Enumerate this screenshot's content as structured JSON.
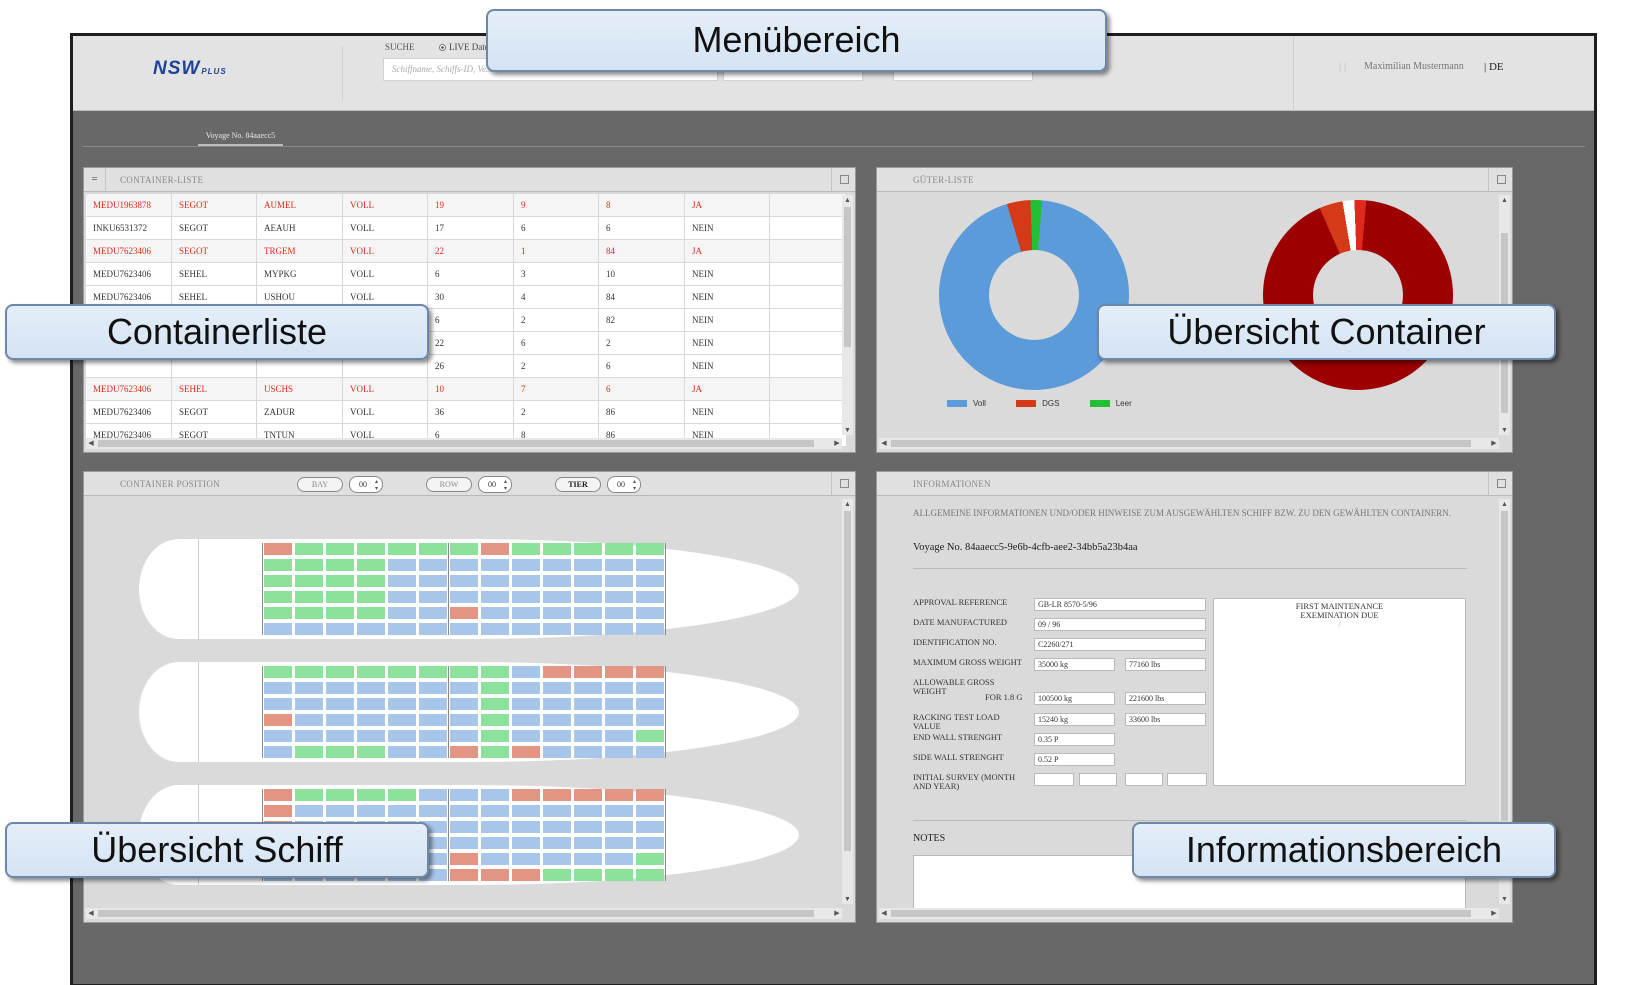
{
  "header": {
    "logo": "NSW",
    "logo_suffix": "PLUS",
    "search_label": "SUCHE",
    "live_label": "LIVE Daten",
    "search_placeholder": "Schiffname, Schiffs-ID, Ve...",
    "pipes": "| |",
    "user_name": "Maximilian Mustermann",
    "language": "| DE"
  },
  "tabs": {
    "voyage": "Voyage No. 84aaecc5"
  },
  "container_list": {
    "title": "CONTAINER-LISTE",
    "toggle": "=",
    "rows": [
      {
        "red": true,
        "cells": [
          "MEDU1963878",
          "SEGOT",
          "AUMEL",
          "VOLL",
          "19",
          "9",
          "8",
          "JA",
          ""
        ]
      },
      {
        "red": false,
        "cells": [
          "INKU6531372",
          "SEGOT",
          "AEAUH",
          "VOLL",
          "17",
          "6",
          "6",
          "NEIN",
          ""
        ]
      },
      {
        "red": true,
        "cells": [
          "MEDU7623406",
          "SEGOT",
          "TRGEM",
          "VOLL",
          "22",
          "1",
          "84",
          "JA",
          ""
        ]
      },
      {
        "red": false,
        "cells": [
          "MEDU7623406",
          "SEHEL",
          "MYPKG",
          "VOLL",
          "6",
          "3",
          "10",
          "NEIN",
          ""
        ]
      },
      {
        "red": false,
        "cells": [
          "MEDU7623406",
          "SEHEL",
          "USHOU",
          "VOLL",
          "30",
          "4",
          "84",
          "NEIN",
          ""
        ]
      },
      {
        "red": false,
        "cells": [
          "",
          "",
          "",
          "",
          "6",
          "2",
          "82",
          "NEIN",
          ""
        ]
      },
      {
        "red": false,
        "cells": [
          "",
          "",
          "",
          "",
          "22",
          "6",
          "2",
          "NEIN",
          ""
        ]
      },
      {
        "red": false,
        "cells": [
          "",
          "",
          "",
          "",
          "26",
          "2",
          "6",
          "NEIN",
          ""
        ]
      },
      {
        "red": true,
        "cells": [
          "MEDU7623406",
          "SEHEL",
          "USCHS",
          "VOLL",
          "10",
          "7",
          "6",
          "JA",
          ""
        ]
      },
      {
        "red": false,
        "cells": [
          "MEDU7623406",
          "SEGOT",
          "ZADUR",
          "VOLL",
          "36",
          "2",
          "86",
          "NEIN",
          ""
        ]
      },
      {
        "red": false,
        "cells": [
          "MEDU7623406",
          "SEGOT",
          "TNTUN",
          "VOLL",
          "6",
          "8",
          "86",
          "NEIN",
          ""
        ]
      }
    ]
  },
  "goods_list": {
    "title": "GÜTER-LISTE",
    "legend": [
      {
        "label": "Voll",
        "color": "#5b9bd9"
      },
      {
        "label": "DGS",
        "color": "#d43a18"
      },
      {
        "label": "Leer",
        "color": "#21c035"
      }
    ],
    "chart_data": [
      {
        "type": "pie",
        "donut": true,
        "series": [
          {
            "values": [
              94,
              4,
              2
            ]
          }
        ],
        "categories": [
          "Voll",
          "DGS",
          "Leer"
        ]
      },
      {
        "type": "pie",
        "donut": true,
        "series": [
          {
            "values": [
              92,
              4,
              2,
              2
            ]
          }
        ],
        "categories": [
          "",
          "",
          "",
          ""
        ]
      }
    ]
  },
  "container_position": {
    "title": "CONTAINER POSITION",
    "bay_label": "BAY",
    "bay_value": "00",
    "row_label": "ROW",
    "row_value": "00",
    "tier_label": "TIER",
    "tier_value": "00",
    "colors": {
      "green": "#8ce29a",
      "blue": "#a8c6ea",
      "red": "#e29582"
    },
    "ships": [
      {
        "rows": [
          "rggggggrggggg",
          "ggggbbbbbbbbb",
          "ggggbbbbbbbbb",
          "ggggbbbbbbbbb",
          "ggggbbrbbbbbb",
          "bbbbbbbbbbbbb"
        ]
      },
      {
        "rows": [
          "ggggggggbrrrr",
          "bbbbbbbgbbbbb",
          "bbbbbbbgbbbbb",
          "rbbbbbbgbbbbb",
          "bbbbbbbgbbbbg",
          "bgggbbrgrbbbb"
        ]
      },
      {
        "rows": [
          "rggggbbbrrrrr",
          "rbbbbbbbbbbbb",
          "rbbbbbbbbbbbb",
          "rbbbbbbbbbbbb",
          "bbbbbbrbbbbbg",
          "bbbbbbrrrgggg"
        ]
      }
    ]
  },
  "information": {
    "title": "INFORMATIONEN",
    "hint": "ALLGEMEINE INFORMATIONEN UND/ODER HINWEISE ZUM AUSGEWÄHLTEN SCHIFF BZW. ZU DEN GEWÄHLTEN CONTAINERN.",
    "voyage": "Voyage No. 84aaecc5-9e6b-4cfb-aee2-34bb5a23b4aa",
    "fields": {
      "approval_reference": {
        "label": "APPROVAL REFERENCE",
        "value": "GB-LR 8570-5/96"
      },
      "date_manufactured": {
        "label": "DATE MANUFACTURED",
        "value": "09 / 96"
      },
      "identification_no": {
        "label": "IDENTIFICATION NO.",
        "value": "C2260/271"
      },
      "max_gross_weight": {
        "label": "MAXIMUM GROSS WEIGHT",
        "value_kg": "35000 kg",
        "value_lbs": "77160 lbs"
      },
      "allowable_gross_weight": {
        "label": "ALLOWABLE GROSS WEIGHT",
        "sublabel": "FOR 1.8 G",
        "value_kg": "100500 kg",
        "value_lbs": "221600 lbs"
      },
      "racking_test_load": {
        "label": "RACKING TEST LOAD VALUE",
        "value_kg": "15240 kg",
        "value_lbs": "33600 lbs"
      },
      "end_wall_strength": {
        "label": "END WALL STRENGHT",
        "value": "0.35 P"
      },
      "side_wall_strength": {
        "label": "SIDE WALL STRENGHT",
        "value": "0.52 P"
      },
      "initial_survey": {
        "label": "INITIAL SURVEY (MONTH AND YEAR)"
      }
    },
    "maintenance": "FIRST MAINTENANCE EXEMINATION DUE",
    "maintenance_mark": "/",
    "notes_label": "NOTES"
  },
  "callouts": {
    "menu": "Menübereich",
    "containerlist": "Containerliste",
    "overview_container": "Übersicht Container",
    "overview_ship": "Übersicht Schiff",
    "info_area": "Informationsbereich"
  }
}
